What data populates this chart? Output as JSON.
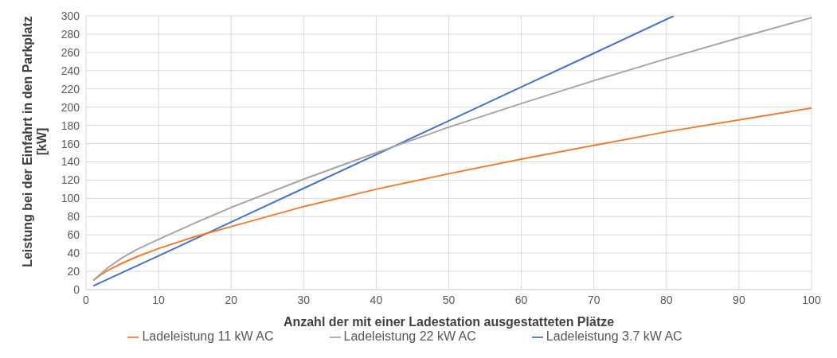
{
  "chart_data": {
    "type": "line",
    "xlabel": "Anzahl der mit einer Ladestation ausgestatteten Plätze",
    "ylabel": "Leistung bei der Einfahrt in den Parkplatz [kW]",
    "xlim": [
      0,
      100
    ],
    "xticks": [
      0,
      10,
      20,
      30,
      40,
      50,
      60,
      70,
      80,
      90,
      100
    ],
    "ylim": [
      0,
      300
    ],
    "yticks": [
      0,
      20,
      40,
      60,
      80,
      100,
      120,
      140,
      160,
      180,
      200,
      220,
      240,
      260,
      280,
      300
    ],
    "grid": true,
    "legend": "bottom",
    "marker": "none",
    "line_style": "solid",
    "series": [
      {
        "name": "Ladeleistung 3.7 kW AC",
        "color": "#4472c4",
        "x": [
          1,
          10,
          20,
          30,
          40,
          50,
          60,
          70,
          81
        ],
        "values": [
          4,
          37,
          74,
          111,
          148,
          185,
          222,
          259,
          300
        ]
      },
      {
        "name": "Ladeleistung 11 kW AC",
        "color": "#ed7d31",
        "x": [
          1,
          2,
          3,
          5,
          7,
          10,
          15,
          20,
          30,
          40,
          50,
          60,
          70,
          80,
          90,
          100
        ],
        "values": [
          10,
          16,
          21,
          29,
          36,
          45,
          58,
          69,
          91,
          110,
          127,
          143,
          158,
          173,
          186,
          199
        ]
      },
      {
        "name": "Ladeleistung 22 kW AC",
        "color": "#a5a5a5",
        "x": [
          1,
          2,
          3,
          5,
          7,
          10,
          15,
          20,
          30,
          40,
          50,
          60,
          70,
          80,
          90,
          100
        ],
        "values": [
          10,
          17,
          24,
          35,
          44,
          55,
          73,
          90,
          121,
          150,
          178,
          204,
          229,
          253,
          276,
          298
        ]
      }
    ]
  }
}
